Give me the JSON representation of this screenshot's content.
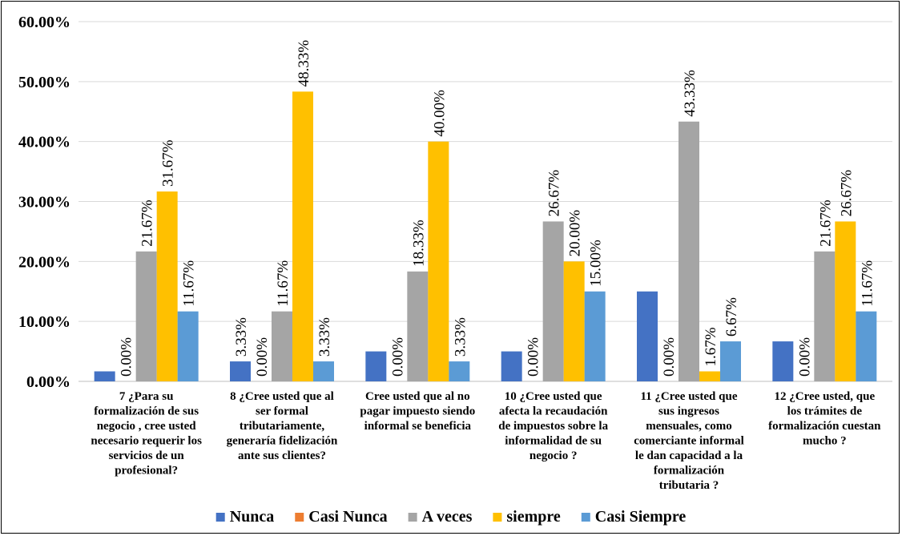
{
  "chart_data": {
    "type": "bar",
    "title": "",
    "xlabel": "",
    "ylabel": "",
    "ylim": [
      0,
      60
    ],
    "y_ticks": [
      "0.00%",
      "10.00%",
      "20.00%",
      "30.00%",
      "40.00%",
      "50.00%",
      "60.00%"
    ],
    "grid": true,
    "legend_position": "bottom",
    "categories": [
      [
        "7 ¿Para  su",
        "formalización de sus",
        "negocio , cree usted",
        "necesario requerir los",
        "servicios de un",
        "profesional?"
      ],
      [
        "8 ¿Cree usted que al",
        "ser formal",
        "tributariamente,",
        "generaría fidelización",
        "ante sus clientes?"
      ],
      [
        "Cree usted que al no",
        "pagar impuesto siendo",
        "informal se beneficia"
      ],
      [
        "10 ¿Cree usted que",
        "afecta la recaudación",
        "de impuestos sobre la",
        "informalidad de su",
        "negocio ?"
      ],
      [
        "11 ¿Cree usted que",
        "sus ingresos",
        "mensuales, como",
        "comerciante informal",
        "le dan capacidad a la",
        "formalización",
        "tributaria ?"
      ],
      [
        "12 ¿Cree usted, que",
        "los trámites de",
        "formalización cuestan",
        "mucho ?"
      ]
    ],
    "series": [
      {
        "name": "Nunca",
        "color": "#4472C4",
        "values": [
          1.67,
          3.33,
          5.0,
          5.0,
          15.0,
          6.67
        ],
        "labels": [
          "",
          "3.33%",
          "",
          "",
          "",
          ""
        ]
      },
      {
        "name": "Casi Nunca",
        "color": "#ED7D31",
        "values": [
          0,
          0,
          0,
          0,
          0,
          0
        ],
        "labels": [
          "0.00%",
          "0.00%",
          "0.00%",
          "0.00%",
          "0.00%",
          "0.00%"
        ]
      },
      {
        "name": "A veces",
        "color": "#A5A5A5",
        "values": [
          21.67,
          11.67,
          18.33,
          26.67,
          43.33,
          21.67
        ],
        "labels": [
          "21.67%",
          "11.67%",
          "18.33%",
          "26.67%",
          "43.33%",
          "21.67%"
        ]
      },
      {
        "name": "siempre",
        "color": "#FFC000",
        "values": [
          31.67,
          48.33,
          40.0,
          20.0,
          1.67,
          26.67
        ],
        "labels": [
          "31.67%",
          "48.33%",
          "40.00%",
          "20.00%",
          "1.67%",
          "26.67%"
        ]
      },
      {
        "name": "Casi Siempre",
        "color": "#5B9BD5",
        "values": [
          11.67,
          3.33,
          3.33,
          15.0,
          6.67,
          11.67
        ],
        "labels": [
          "11.67%",
          "3.33%",
          "3.33%",
          "15.00%",
          "6.67%",
          "11.67%"
        ]
      }
    ]
  }
}
